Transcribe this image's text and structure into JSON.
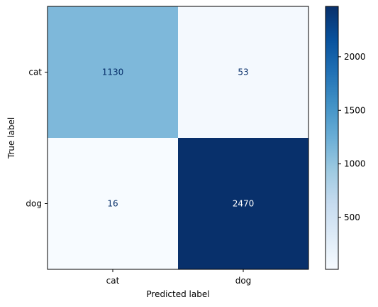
{
  "chart_data": {
    "type": "heatmap",
    "title": "",
    "xlabel": "Predicted label",
    "ylabel": "True label",
    "x_categories": [
      "cat",
      "dog"
    ],
    "y_categories": [
      "cat",
      "dog"
    ],
    "matrix": [
      [
        1130,
        53
      ],
      [
        16,
        2470
      ]
    ],
    "colormap": "Blues",
    "colorbar": {
      "ticks": [
        "500",
        "1000",
        "1500",
        "2000"
      ],
      "min": 16,
      "max": 2470
    },
    "grid": false
  },
  "colors": {
    "low_text": "#08306b",
    "high_text": "#ffffff",
    "axis": "#000000"
  }
}
